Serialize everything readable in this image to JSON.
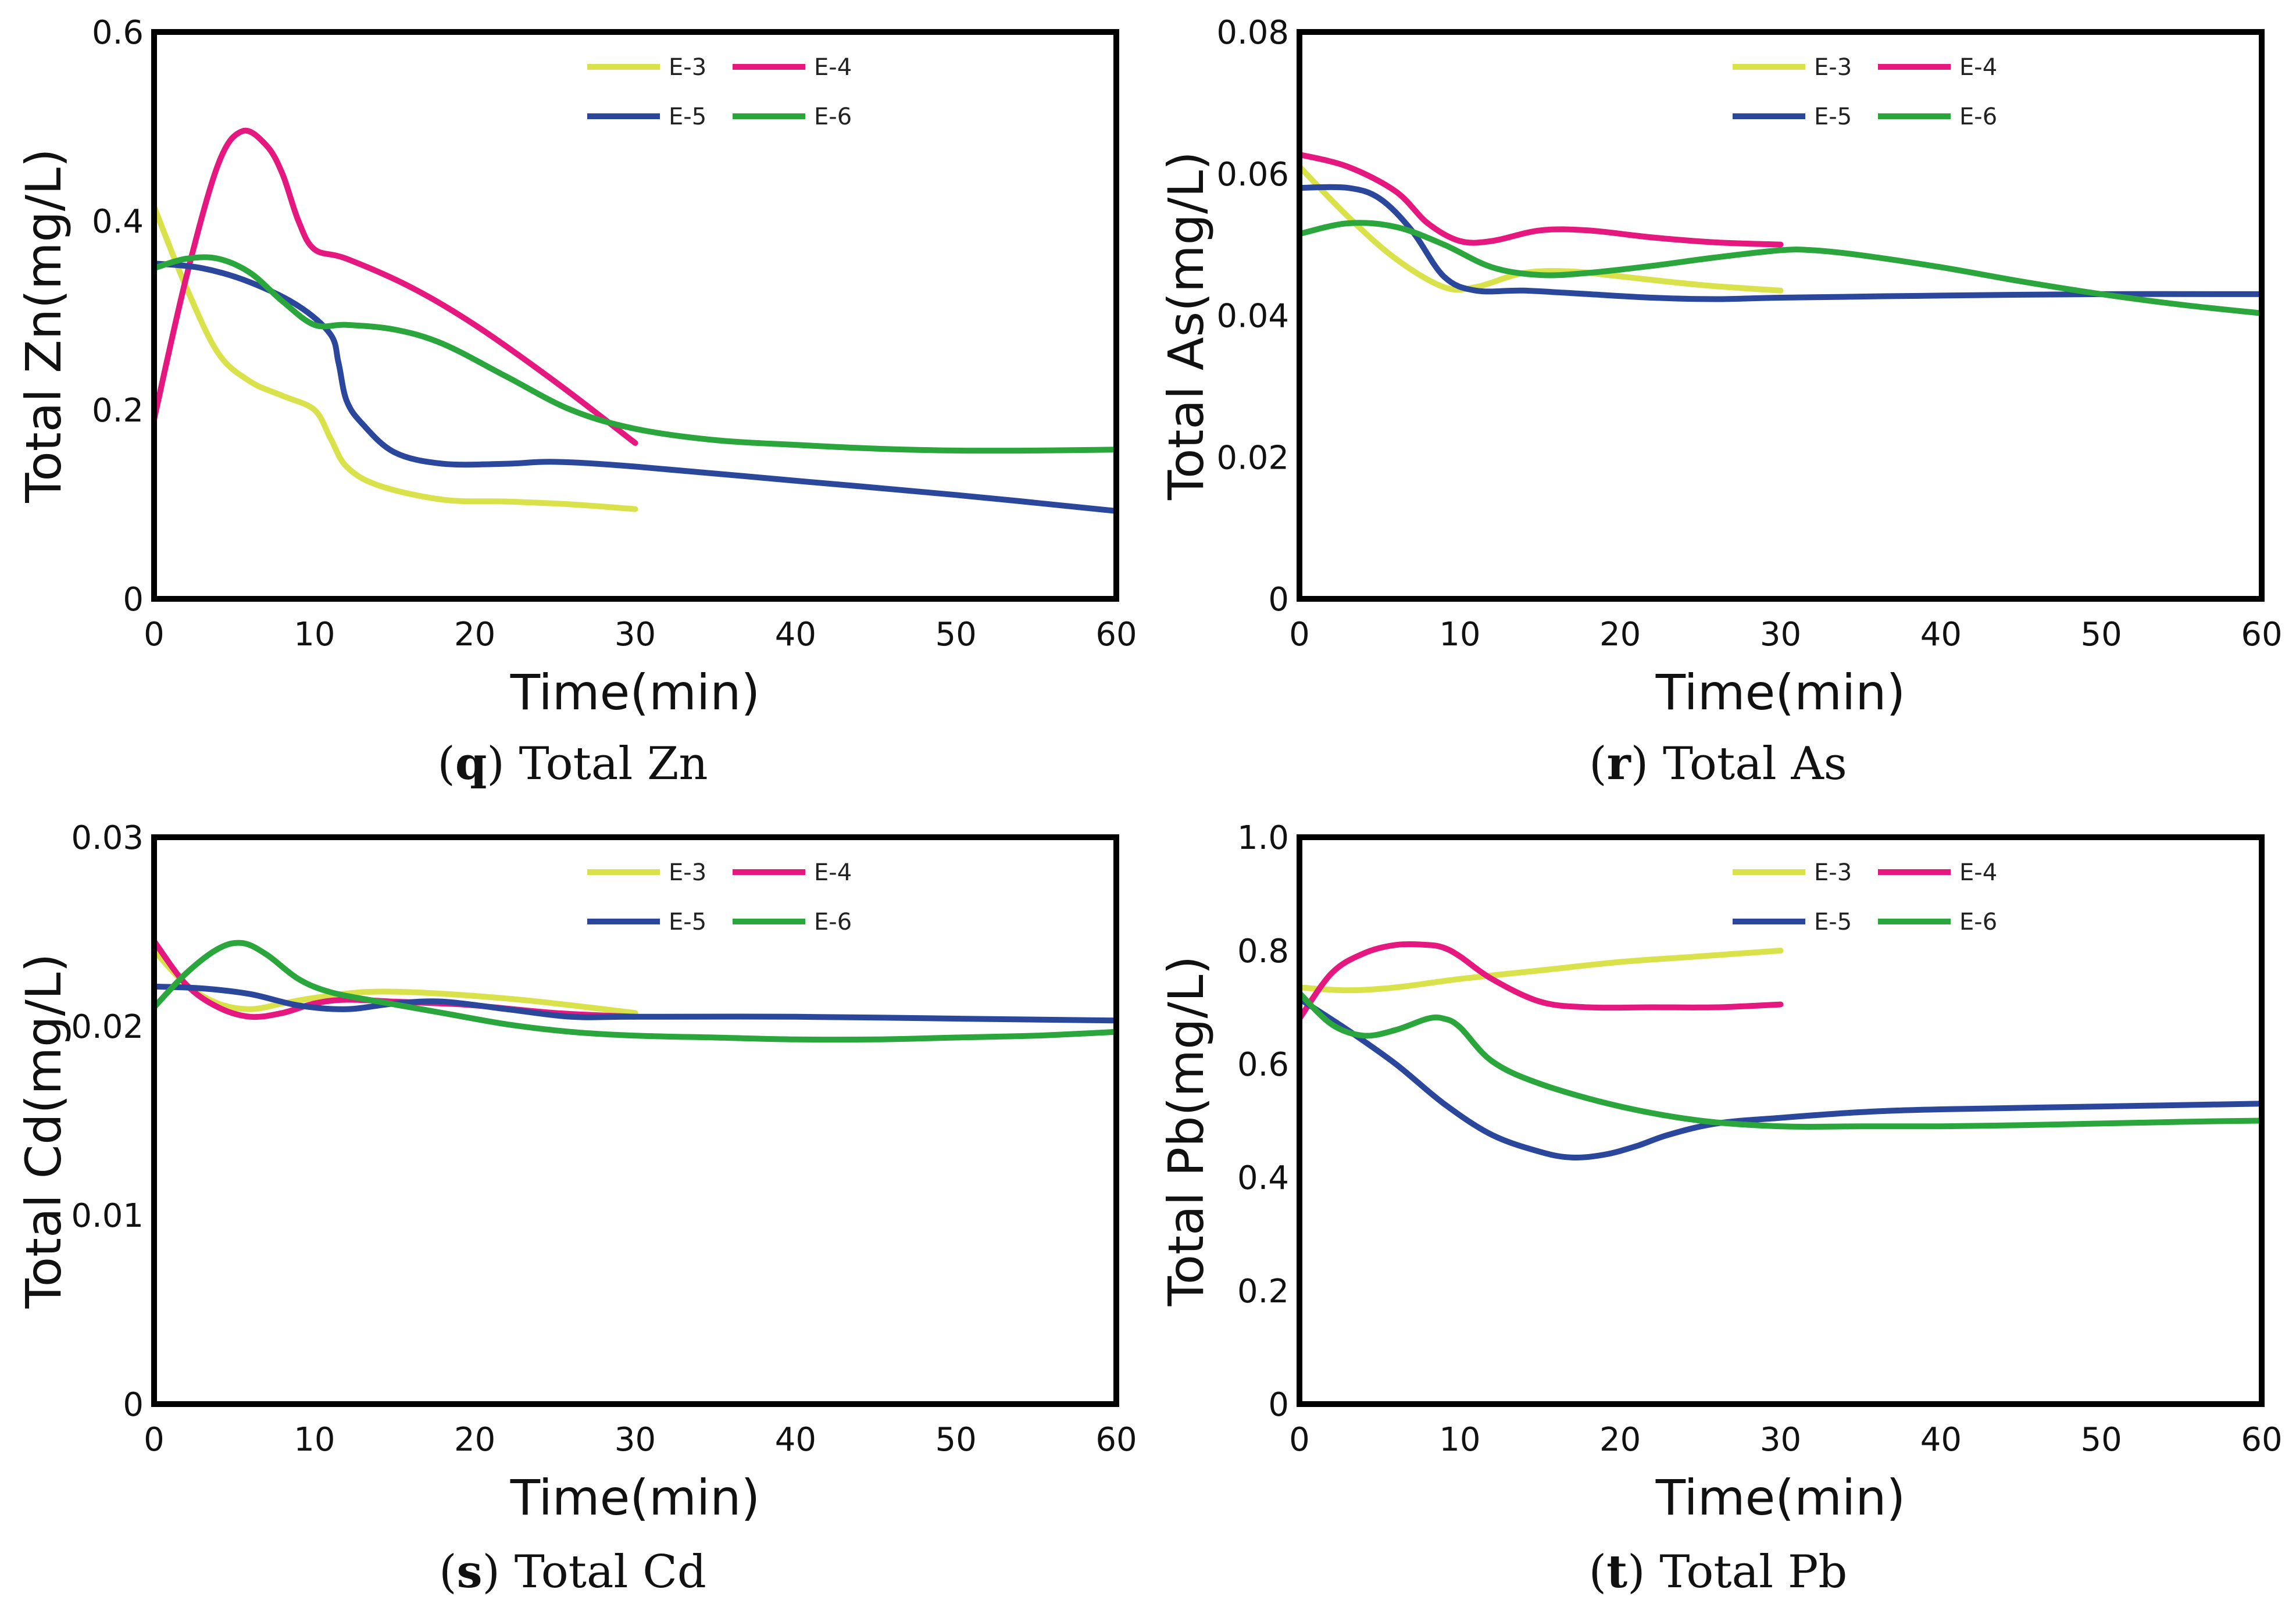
{
  "figure": {
    "series_colors": {
      "E-3": "#d9e24a",
      "E-4": "#e5187f",
      "E-5": "#2b479b",
      "E-6": "#2aa63c"
    }
  },
  "chart_data": [
    {
      "id": "zn",
      "type": "line",
      "caption": {
        "letter": "q",
        "text": "Total Zn"
      },
      "xlabel": "Time(min)",
      "ylabel": "Total Zn(mg/L)",
      "xlim": [
        0,
        60
      ],
      "ylim": [
        0,
        0.6
      ],
      "xticks": [
        0,
        10,
        20,
        30,
        40,
        50,
        60
      ],
      "xtick_labels": [
        "0",
        "10",
        "20",
        "30",
        "40",
        "50",
        "60"
      ],
      "yticks": [
        0,
        0.2,
        0.4,
        0.6
      ],
      "ytick_labels": [
        "0",
        "0.2",
        "0.4",
        "0.6"
      ],
      "legend": [
        "E-3",
        "E-4",
        "E-5",
        "E-6"
      ],
      "series": [
        {
          "name": "E-3",
          "x": [
            0,
            2,
            4,
            6,
            8,
            10,
            11,
            12,
            14,
            18,
            22,
            26,
            30
          ],
          "y": [
            0.415,
            0.33,
            0.26,
            0.23,
            0.215,
            0.2,
            0.17,
            0.14,
            0.12,
            0.105,
            0.103,
            0.1,
            0.095
          ]
        },
        {
          "name": "E-4",
          "x": [
            0,
            2,
            4,
            5.5,
            7,
            8,
            9,
            10,
            12,
            16,
            20,
            25,
            30
          ],
          "y": [
            0.19,
            0.34,
            0.46,
            0.495,
            0.48,
            0.45,
            0.4,
            0.37,
            0.36,
            0.33,
            0.29,
            0.23,
            0.165
          ]
        },
        {
          "name": "E-5",
          "x": [
            0,
            3,
            6,
            9,
            11,
            11.5,
            12,
            13,
            15,
            18,
            22,
            25,
            30,
            40,
            50,
            60
          ],
          "y": [
            0.355,
            0.35,
            0.335,
            0.31,
            0.28,
            0.25,
            0.21,
            0.185,
            0.155,
            0.143,
            0.143,
            0.145,
            0.14,
            0.125,
            0.11,
            0.093
          ]
        },
        {
          "name": "E-6",
          "x": [
            0,
            2,
            4,
            6,
            8,
            10,
            12,
            15,
            18,
            22,
            26,
            30,
            35,
            40,
            45,
            50,
            55,
            60
          ],
          "y": [
            0.35,
            0.36,
            0.36,
            0.345,
            0.315,
            0.29,
            0.29,
            0.285,
            0.27,
            0.235,
            0.2,
            0.18,
            0.168,
            0.163,
            0.159,
            0.157,
            0.157,
            0.158
          ]
        }
      ]
    },
    {
      "id": "as",
      "type": "line",
      "caption": {
        "letter": "r",
        "text": "Total As"
      },
      "xlabel": "Time(min)",
      "ylabel": "Total As(mg/L)",
      "xlim": [
        0,
        60
      ],
      "ylim": [
        0,
        0.08
      ],
      "xticks": [
        0,
        10,
        20,
        30,
        40,
        50,
        60
      ],
      "xtick_labels": [
        "0",
        "10",
        "20",
        "30",
        "40",
        "50",
        "60"
      ],
      "yticks": [
        0,
        0.02,
        0.04,
        0.06,
        0.08
      ],
      "ytick_labels": [
        "0",
        "0.02",
        "0.04",
        "0.06",
        "0.08"
      ],
      "legend": [
        "E-3",
        "E-4",
        "E-5",
        "E-6"
      ],
      "series": [
        {
          "name": "E-3",
          "x": [
            0,
            3,
            6,
            9,
            11,
            14,
            17,
            20,
            25,
            30
          ],
          "y": [
            0.061,
            0.054,
            0.048,
            0.044,
            0.044,
            0.046,
            0.0462,
            0.0455,
            0.0443,
            0.0435
          ]
        },
        {
          "name": "E-4",
          "x": [
            0,
            3,
            6,
            8,
            10,
            12,
            15,
            18,
            22,
            26,
            30
          ],
          "y": [
            0.0627,
            0.061,
            0.0575,
            0.053,
            0.0505,
            0.0505,
            0.052,
            0.052,
            0.051,
            0.0503,
            0.05
          ]
        },
        {
          "name": "E-5",
          "x": [
            0,
            3,
            5,
            7,
            9,
            11,
            14,
            18,
            22,
            26,
            30,
            40,
            50,
            60
          ],
          "y": [
            0.058,
            0.058,
            0.0565,
            0.052,
            0.0455,
            0.0435,
            0.0435,
            0.043,
            0.0425,
            0.0423,
            0.0425,
            0.0428,
            0.043,
            0.043
          ]
        },
        {
          "name": "E-6",
          "x": [
            0,
            3,
            6,
            9,
            12,
            15,
            18,
            22,
            26,
            30,
            32,
            35,
            40,
            45,
            50,
            55,
            60
          ],
          "y": [
            0.0515,
            0.053,
            0.0525,
            0.05,
            0.0468,
            0.0457,
            0.046,
            0.047,
            0.0482,
            0.0492,
            0.0492,
            0.0485,
            0.0468,
            0.0448,
            0.043,
            0.0415,
            0.0403
          ]
        }
      ]
    },
    {
      "id": "cd",
      "type": "line",
      "caption": {
        "letter": "s",
        "text": "Total Cd"
      },
      "xlabel": "Time(min)",
      "ylabel": "Total Cd(mg/L)",
      "xlim": [
        0,
        60
      ],
      "ylim": [
        0,
        0.03
      ],
      "xticks": [
        0,
        10,
        20,
        30,
        40,
        50,
        60
      ],
      "xtick_labels": [
        "0",
        "10",
        "20",
        "30",
        "40",
        "50",
        "60"
      ],
      "yticks": [
        0,
        0.01,
        0.02,
        0.03
      ],
      "ytick_labels": [
        "0",
        "0.01",
        "0.02",
        "0.03"
      ],
      "legend": [
        "E-3",
        "E-4",
        "E-5",
        "E-6"
      ],
      "series": [
        {
          "name": "E-3",
          "x": [
            0,
            2,
            4,
            6,
            8,
            10,
            13,
            16,
            20,
            24,
            30
          ],
          "y": [
            0.024,
            0.0222,
            0.0212,
            0.0209,
            0.0212,
            0.0215,
            0.0218,
            0.0218,
            0.0216,
            0.0213,
            0.0207
          ]
        },
        {
          "name": "E-4",
          "x": [
            0,
            2,
            4,
            6,
            8,
            10,
            12,
            15,
            18,
            20,
            25,
            30
          ],
          "y": [
            0.0245,
            0.0222,
            0.021,
            0.0205,
            0.0207,
            0.0212,
            0.0214,
            0.0213,
            0.0212,
            0.0211,
            0.0207,
            0.0205
          ]
        },
        {
          "name": "E-5",
          "x": [
            0,
            3,
            6,
            9,
            12,
            15,
            18,
            22,
            26,
            30,
            40,
            50,
            60
          ],
          "y": [
            0.0221,
            0.022,
            0.0217,
            0.0211,
            0.0209,
            0.0212,
            0.0213,
            0.0209,
            0.0205,
            0.0205,
            0.0205,
            0.0204,
            0.0203
          ]
        },
        {
          "name": "E-6",
          "x": [
            0,
            2,
            4,
            5.5,
            7,
            9,
            11,
            14,
            18,
            22,
            26,
            30,
            35,
            40,
            45,
            50,
            55,
            60
          ],
          "y": [
            0.021,
            0.0228,
            0.0241,
            0.0244,
            0.0238,
            0.0225,
            0.0218,
            0.0213,
            0.0207,
            0.0201,
            0.0197,
            0.0195,
            0.0194,
            0.0193,
            0.0193,
            0.0194,
            0.0195,
            0.0197
          ]
        }
      ]
    },
    {
      "id": "pb",
      "type": "line",
      "caption": {
        "letter": "t",
        "text": "Total Pb"
      },
      "xlabel": "Time(min)",
      "ylabel": "Total Pb(mg/L)",
      "xlim": [
        0,
        60
      ],
      "ylim": [
        0,
        1.0
      ],
      "xticks": [
        0,
        10,
        20,
        30,
        40,
        50,
        60
      ],
      "xtick_labels": [
        "0",
        "10",
        "20",
        "30",
        "40",
        "50",
        "60"
      ],
      "yticks": [
        0,
        0.2,
        0.4,
        0.6,
        0.8,
        1.0
      ],
      "ytick_labels": [
        "0",
        "0.2",
        "0.4",
        "0.6",
        "0.8",
        "1.0"
      ],
      "legend": [
        "E-3",
        "E-4",
        "E-5",
        "E-6"
      ],
      "series": [
        {
          "name": "E-3",
          "x": [
            0,
            3,
            6,
            10,
            15,
            20,
            25,
            30
          ],
          "y": [
            0.735,
            0.73,
            0.735,
            0.75,
            0.765,
            0.78,
            0.79,
            0.8
          ]
        },
        {
          "name": "E-4",
          "x": [
            0,
            2,
            4,
            6,
            8,
            9,
            10,
            12,
            15,
            18,
            22,
            26,
            30
          ],
          "y": [
            0.68,
            0.76,
            0.795,
            0.81,
            0.81,
            0.805,
            0.79,
            0.75,
            0.71,
            0.7,
            0.7,
            0.7,
            0.705
          ]
        },
        {
          "name": "E-5",
          "x": [
            0,
            3,
            6,
            9,
            12,
            15,
            17,
            19,
            21,
            23,
            26,
            30,
            35,
            40,
            50,
            60
          ],
          "y": [
            0.715,
            0.66,
            0.6,
            0.53,
            0.475,
            0.445,
            0.435,
            0.44,
            0.455,
            0.475,
            0.495,
            0.505,
            0.515,
            0.52,
            0.525,
            0.53
          ]
        },
        {
          "name": "E-6",
          "x": [
            0,
            2,
            4,
            6,
            8,
            9,
            10,
            12,
            15,
            20,
            25,
            30,
            35,
            40,
            45,
            50,
            55,
            60
          ],
          "y": [
            0.725,
            0.67,
            0.65,
            0.66,
            0.68,
            0.68,
            0.665,
            0.605,
            0.565,
            0.525,
            0.5,
            0.49,
            0.49,
            0.49,
            0.492,
            0.495,
            0.498,
            0.5
          ]
        }
      ]
    }
  ]
}
